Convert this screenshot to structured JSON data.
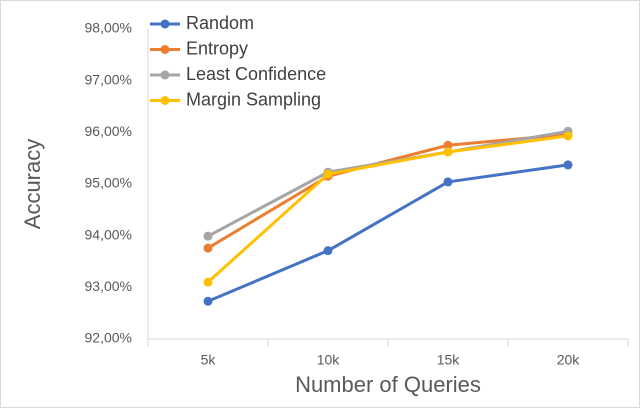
{
  "chart_data": {
    "type": "line",
    "x_label": "Number of Queries",
    "y_label": "Accuracy",
    "categories": [
      "5k",
      "10k",
      "15k",
      "20k"
    ],
    "series": [
      {
        "name": "Random",
        "color": "#4472c4",
        "values": [
          92.73,
          93.71,
          95.04,
          95.37
        ]
      },
      {
        "name": "Entropy",
        "color": "#ed7d31",
        "values": [
          93.76,
          95.15,
          95.75,
          95.96
        ]
      },
      {
        "name": "Least Confidence",
        "color": "#a5a5a5",
        "values": [
          93.99,
          95.23,
          95.62,
          96.02
        ]
      },
      {
        "name": "Margin Sampling",
        "color": "#ffc000",
        "values": [
          93.1,
          95.19,
          95.62,
          95.93
        ]
      }
    ],
    "ylim": [
      92,
      98
    ],
    "yticks": [
      {
        "value": 92,
        "label": "92,00%"
      },
      {
        "value": 93,
        "label": "93,00%"
      },
      {
        "value": 94,
        "label": "94,00%"
      },
      {
        "value": 95,
        "label": "95,00%"
      },
      {
        "value": 96,
        "label": "96,00%"
      },
      {
        "value": 97,
        "label": "97,00%"
      },
      {
        "value": 98,
        "label": "98,00%"
      }
    ],
    "grid": false,
    "legend": "upper left"
  }
}
